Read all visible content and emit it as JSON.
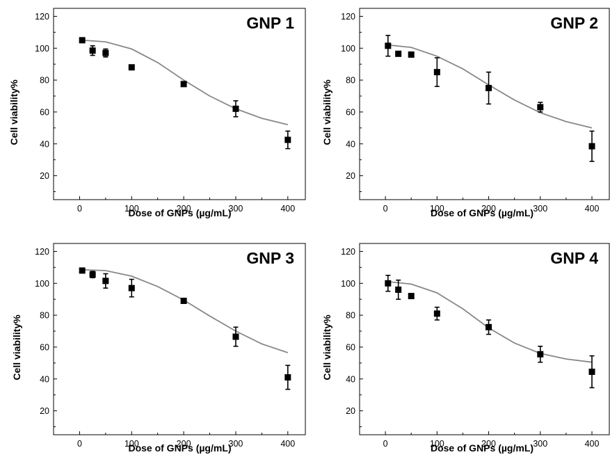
{
  "chart_data": [
    {
      "type": "scatter",
      "title": "GNP 1",
      "xlabel": "Dose of GNPs (µg/mL)",
      "ylabel": "Cell viability%",
      "xlim": [
        -50,
        435
      ],
      "ylim": [
        5,
        125
      ],
      "xticks": [
        0,
        100,
        200,
        300,
        400
      ],
      "yticks": [
        20,
        40,
        60,
        80,
        100,
        120
      ],
      "grid": false,
      "legend": "none",
      "points": [
        {
          "x": 5,
          "y": 105,
          "err": 1
        },
        {
          "x": 25,
          "y": 98.5,
          "err": 3
        },
        {
          "x": 50,
          "y": 97,
          "err": 2.5
        },
        {
          "x": 100,
          "y": 88,
          "err": 1
        },
        {
          "x": 200,
          "y": 77.5,
          "err": 1
        },
        {
          "x": 300,
          "y": 62,
          "err": 5
        },
        {
          "x": 400,
          "y": 42.5,
          "err": 5.5
        }
      ],
      "fit": [
        [
          5,
          105
        ],
        [
          50,
          104
        ],
        [
          100,
          99.5
        ],
        [
          150,
          91
        ],
        [
          200,
          80
        ],
        [
          250,
          70
        ],
        [
          300,
          62
        ],
        [
          350,
          56
        ],
        [
          400,
          52
        ]
      ]
    },
    {
      "type": "scatter",
      "title": "GNP 2",
      "xlabel": "Dose of GNPs (µg/mL)",
      "ylabel": "Cell viability%",
      "xlim": [
        -50,
        435
      ],
      "ylim": [
        5,
        125
      ],
      "xticks": [
        0,
        100,
        200,
        300,
        400
      ],
      "yticks": [
        20,
        40,
        60,
        80,
        100,
        120
      ],
      "grid": false,
      "legend": "none",
      "points": [
        {
          "x": 5,
          "y": 101.5,
          "err": 6.5
        },
        {
          "x": 25,
          "y": 96.5,
          "err": 1.5
        },
        {
          "x": 50,
          "y": 96,
          "err": 1.5
        },
        {
          "x": 100,
          "y": 85,
          "err": 9
        },
        {
          "x": 200,
          "y": 75,
          "err": 10
        },
        {
          "x": 300,
          "y": 63,
          "err": 3
        },
        {
          "x": 400,
          "y": 38.5,
          "err": 9.5
        }
      ],
      "fit": [
        [
          5,
          102
        ],
        [
          50,
          100.5
        ],
        [
          100,
          95
        ],
        [
          150,
          87
        ],
        [
          200,
          77
        ],
        [
          250,
          67.5
        ],
        [
          300,
          59.5
        ],
        [
          350,
          54
        ],
        [
          400,
          50
        ]
      ]
    },
    {
      "type": "scatter",
      "title": "GNP 3",
      "xlabel": "Dose of GNPs (µg/mL)",
      "ylabel": "Cell viability%",
      "xlim": [
        -50,
        435
      ],
      "ylim": [
        5,
        125
      ],
      "xticks": [
        0,
        100,
        200,
        300,
        400
      ],
      "yticks": [
        20,
        40,
        60,
        80,
        100,
        120
      ],
      "grid": false,
      "legend": "none",
      "points": [
        {
          "x": 5,
          "y": 108,
          "err": 1
        },
        {
          "x": 25,
          "y": 105.5,
          "err": 2
        },
        {
          "x": 50,
          "y": 101.5,
          "err": 4.5
        },
        {
          "x": 100,
          "y": 97,
          "err": 5.5
        },
        {
          "x": 200,
          "y": 89,
          "err": 1
        },
        {
          "x": 300,
          "y": 66.5,
          "err": 6
        },
        {
          "x": 400,
          "y": 41,
          "err": 7.5
        }
      ],
      "fit": [
        [
          5,
          108.5
        ],
        [
          50,
          108
        ],
        [
          100,
          104.5
        ],
        [
          150,
          98
        ],
        [
          200,
          89.5
        ],
        [
          250,
          79.5
        ],
        [
          300,
          70
        ],
        [
          350,
          62
        ],
        [
          400,
          56.5
        ]
      ]
    },
    {
      "type": "scatter",
      "title": "GNP 4",
      "xlabel": "Dose of GNPs (µg/mL)",
      "ylabel": "Cell viability%",
      "xlim": [
        -50,
        435
      ],
      "ylim": [
        5,
        125
      ],
      "xticks": [
        0,
        100,
        200,
        300,
        400
      ],
      "yticks": [
        20,
        40,
        60,
        80,
        100,
        120
      ],
      "grid": false,
      "legend": "none",
      "points": [
        {
          "x": 5,
          "y": 100,
          "err": 5
        },
        {
          "x": 25,
          "y": 96,
          "err": 6
        },
        {
          "x": 50,
          "y": 92,
          "err": 1.5
        },
        {
          "x": 100,
          "y": 81,
          "err": 4
        },
        {
          "x": 200,
          "y": 72.5,
          "err": 4.5
        },
        {
          "x": 300,
          "y": 55.5,
          "err": 5
        },
        {
          "x": 400,
          "y": 44.5,
          "err": 10
        }
      ],
      "fit": [
        [
          5,
          101
        ],
        [
          50,
          99.5
        ],
        [
          100,
          94
        ],
        [
          150,
          84
        ],
        [
          200,
          72
        ],
        [
          250,
          62.5
        ],
        [
          300,
          56
        ],
        [
          350,
          52.5
        ],
        [
          400,
          50.5
        ]
      ]
    }
  ]
}
